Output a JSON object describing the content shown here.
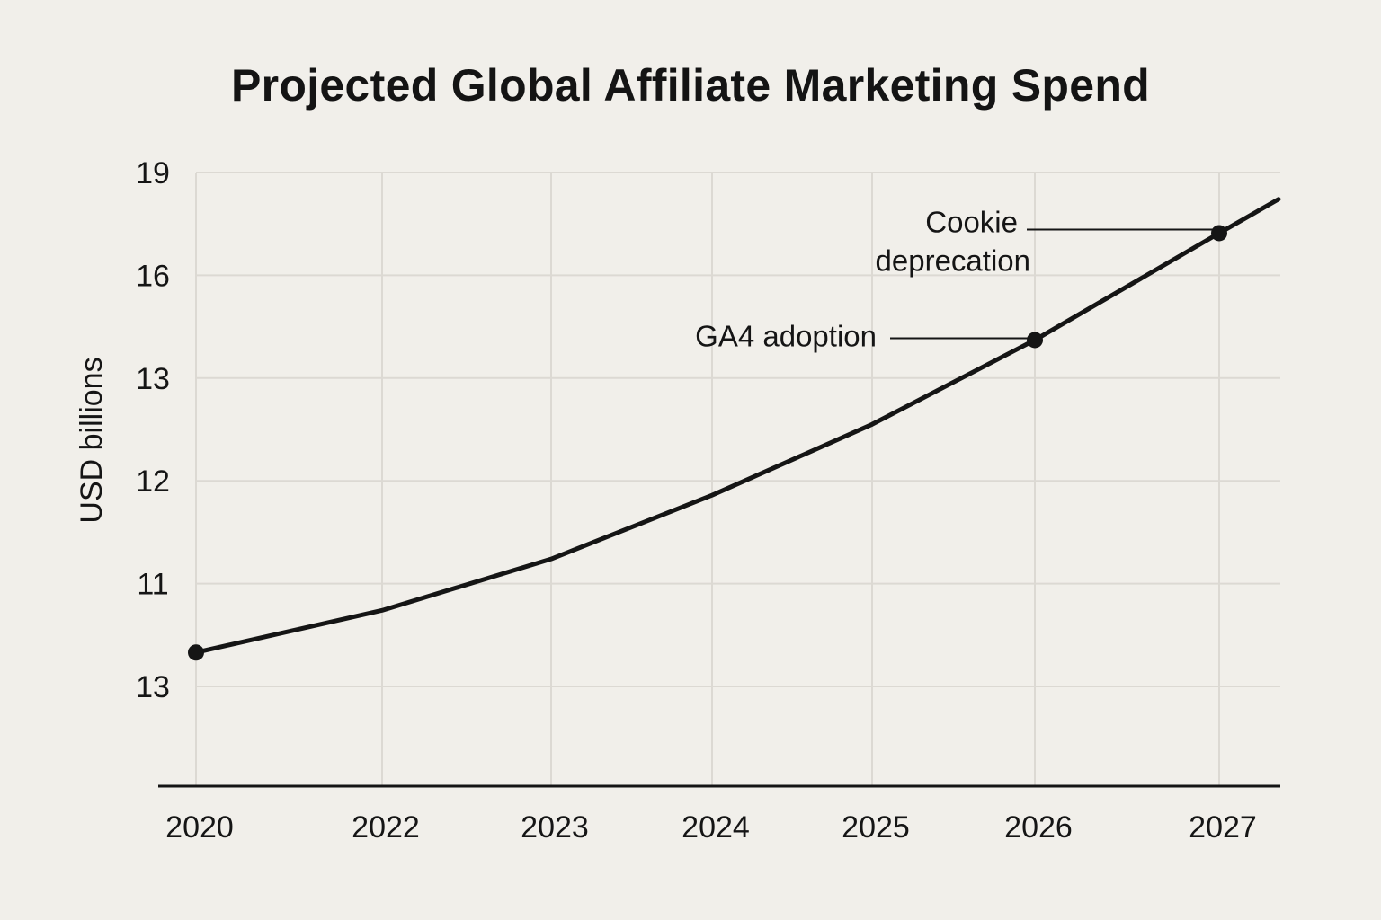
{
  "chart_data": {
    "type": "line",
    "title": "Projected Global Affiliate Marketing Spend",
    "xlabel": "",
    "ylabel": "USD billions",
    "x": [
      "2020",
      "2022",
      "2023",
      "2024",
      "2025",
      "2026",
      "2027"
    ],
    "y_tick_labels": [
      "13",
      "11",
      "12",
      "13",
      "16",
      "19"
    ],
    "y_scale_note": "values expressed as position on the labeled tick scale (0 = lowest tick, 5 = top tick); tick labels as printed are non-monotonic",
    "ylim": [
      -1,
      5
    ],
    "grid": true,
    "series": [
      {
        "name": "Spend",
        "values": [
          0.33,
          0.74,
          1.24,
          1.86,
          2.55,
          3.37,
          4.41
        ],
        "extension_end": 4.74,
        "markers_at": [
          "2020",
          "2026",
          "2027"
        ]
      }
    ],
    "annotations": [
      {
        "text_lines": [
          "GA4 adoption"
        ],
        "x": "2026"
      },
      {
        "text_lines": [
          "Cookie",
          "deprecation"
        ],
        "x": "2027"
      }
    ]
  }
}
